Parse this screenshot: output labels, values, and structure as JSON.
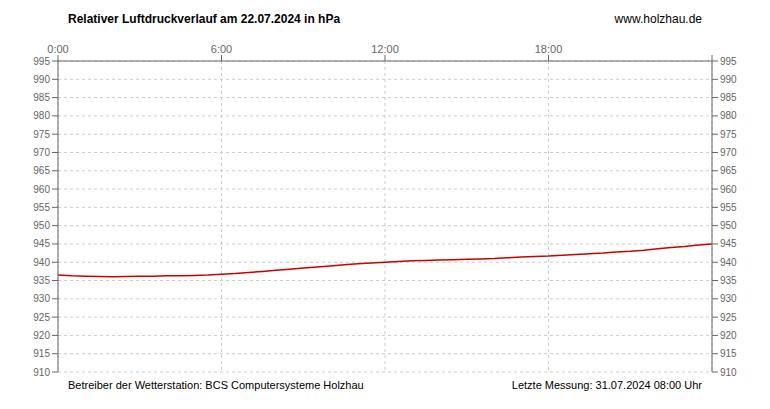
{
  "chart_data": {
    "type": "line",
    "title": "Relativer Luftdruckverlauf am 22.07.2024 in hPa",
    "annotations": [
      "www.holzhau.de",
      "Betreiber der Wetterstation: BCS Computersysteme Holzhau",
      "Letzte Messung: 31.07.2024 08:00 Uhr"
    ],
    "x": [
      0,
      0.5,
      1,
      1.5,
      2,
      2.5,
      3,
      3.5,
      4,
      4.5,
      5,
      5.5,
      6,
      6.5,
      7,
      7.5,
      8,
      8.5,
      9,
      9.5,
      10,
      10.5,
      11,
      11.5,
      12,
      12.5,
      13,
      13.5,
      14,
      14.5,
      15,
      15.5,
      16,
      16.5,
      17,
      17.5,
      18,
      18.5,
      19,
      19.5,
      20,
      20.5,
      21,
      21.5,
      22,
      22.5,
      23,
      23.5,
      24
    ],
    "values": [
      936.5,
      936.3,
      936.2,
      936.1,
      936.0,
      936.1,
      936.2,
      936.2,
      936.3,
      936.3,
      936.4,
      936.5,
      936.7,
      936.9,
      937.2,
      937.5,
      937.8,
      938.1,
      938.4,
      938.7,
      939.0,
      939.3,
      939.6,
      939.8,
      940.0,
      940.2,
      940.4,
      940.5,
      940.6,
      940.7,
      940.8,
      940.9,
      941.0,
      941.2,
      941.4,
      941.6,
      941.7,
      941.9,
      942.1,
      942.3,
      942.5,
      942.8,
      943.0,
      943.3,
      943.7,
      944.0,
      944.3,
      944.7,
      945.0
    ],
    "color": "#cc0000",
    "xlim": [
      0,
      24
    ],
    "xticks": [
      {
        "value": 0,
        "label": "0:00"
      },
      {
        "value": 6,
        "label": "6:00"
      },
      {
        "value": 12,
        "label": "12:00"
      },
      {
        "value": 18,
        "label": "18:00"
      },
      {
        "value": 24,
        "label": ""
      }
    ],
    "ylim": [
      910,
      995
    ],
    "yticks": [
      910,
      915,
      920,
      925,
      930,
      935,
      940,
      945,
      950,
      955,
      960,
      965,
      970,
      975,
      980,
      985,
      990,
      995
    ],
    "y2lim": [
      910,
      995
    ],
    "y2ticks": [
      910,
      915,
      920,
      925,
      930,
      935,
      940,
      945,
      950,
      955,
      960,
      965,
      970,
      975,
      980,
      985,
      990,
      995
    ],
    "grid": true
  }
}
